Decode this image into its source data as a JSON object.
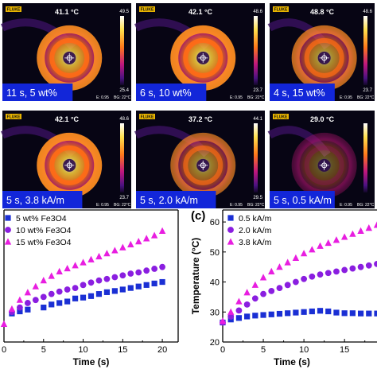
{
  "thermal_images": [
    {
      "temp": "41.1 °C",
      "scale_max": "49.5",
      "scale_min": "25.4",
      "caption": "11 s, 5 wt%",
      "brand": "FLUKE",
      "emissivity": "E: 0.95",
      "background": "BG: 22°C",
      "intensity": 0.85
    },
    {
      "temp": "42.1 °C",
      "scale_max": "48.6",
      "scale_min": "23.7",
      "caption": "6 s, 10 wt%",
      "brand": "FLUKE",
      "emissivity": "E: 0.95",
      "background": "BG: 22°C",
      "intensity": 0.9
    },
    {
      "temp": "48.8 °C",
      "scale_max": "48.6",
      "scale_min": "23.7",
      "caption": "4 s, 15 wt%",
      "brand": "FLUKE",
      "emissivity": "E: 0.95",
      "background": "BG: 22°C",
      "intensity": 0.6
    },
    {
      "temp": "42.1 °C",
      "scale_max": "48.6",
      "scale_min": "23.7",
      "caption": "5 s, 3.8 kA/m",
      "brand": "FLUKE",
      "emissivity": "E: 0.95",
      "background": "BG: 22°C",
      "intensity": 0.9
    },
    {
      "temp": "37.2 °C",
      "scale_max": "44.1",
      "scale_min": "29.5",
      "caption": "5 s, 2.0 kA/m",
      "brand": "FLUKE",
      "emissivity": "E: 0.95",
      "background": "BG: 22°C",
      "intensity": 0.5
    },
    {
      "temp": "29.0 °C",
      "scale_max": "",
      "scale_min": "",
      "caption": "5 s, 0.5 kA/m",
      "brand": "FLUKE",
      "emissivity": "E: 0.95",
      "background": "BG: 22°C",
      "intensity": 0.15
    }
  ],
  "chart_data": [
    {
      "type": "scatter",
      "panel_label": "",
      "xlabel": "Time (s)",
      "ylabel": "",
      "xlim": [
        0,
        22
      ],
      "ylim": [
        20,
        64
      ],
      "xticks": [
        0,
        5,
        10,
        15,
        20
      ],
      "legend_position": "top-left",
      "series": [
        {
          "name": "5 wt% Fe3O4",
          "marker": "square",
          "color": "#1a2fd4",
          "x": [
            1,
            2,
            3,
            5,
            6,
            7,
            8,
            9,
            10,
            11,
            12,
            13,
            14,
            15,
            16,
            17,
            18,
            19,
            20
          ],
          "y": [
            29.5,
            30.2,
            30.8,
            31.5,
            32.5,
            33,
            33.5,
            34.5,
            34.8,
            35.3,
            36,
            36.6,
            37,
            37.5,
            38,
            38.5,
            39,
            39.5,
            40
          ]
        },
        {
          "name": "10 wt% Fe3O4",
          "marker": "circle",
          "color": "#8a1ee0",
          "x": [
            1,
            2,
            3,
            4,
            5,
            6,
            7,
            8,
            9,
            10,
            11,
            12,
            13,
            14,
            15,
            16,
            17,
            18,
            19,
            20
          ],
          "y": [
            30,
            31.5,
            33,
            34,
            35,
            36,
            36.8,
            37.5,
            38,
            39,
            39.8,
            40.5,
            41,
            41.6,
            42.2,
            42.8,
            43.2,
            43.8,
            44.4,
            45
          ]
        },
        {
          "name": "15 wt% Fe3O4",
          "marker": "triangle",
          "color": "#e81ee0",
          "x": [
            0,
            1,
            2,
            3,
            4,
            5,
            6,
            7,
            8,
            9,
            10,
            11,
            12,
            13,
            14,
            15,
            16,
            17,
            18,
            19,
            20
          ],
          "y": [
            26,
            31,
            34,
            36.5,
            38.5,
            40.5,
            42,
            43.5,
            44.5,
            45.5,
            46.5,
            47.5,
            48.5,
            49.5,
            50.5,
            51.5,
            52.5,
            53.5,
            54.5,
            55.5,
            57
          ]
        }
      ]
    },
    {
      "type": "scatter",
      "panel_label": "(c)",
      "xlabel": "Time (s)",
      "ylabel": "Temperature (°C)",
      "xlim": [
        0,
        19
      ],
      "ylim": [
        20,
        64
      ],
      "xticks": [
        0,
        5,
        10,
        15
      ],
      "yticks": [
        20,
        30,
        40,
        50,
        60
      ],
      "legend_position": "top-left",
      "series": [
        {
          "name": "0.5 kA/m",
          "marker": "square",
          "color": "#1a2fd4",
          "x": [
            0,
            1,
            2,
            3,
            4,
            5,
            6,
            7,
            8,
            9,
            10,
            11,
            12,
            13,
            14,
            15,
            16,
            17,
            18,
            19
          ],
          "y": [
            26.5,
            27.5,
            28,
            28.5,
            28.8,
            29,
            29.2,
            29.4,
            29.6,
            29.8,
            30,
            30.2,
            30.4,
            30.2,
            29.8,
            29.6,
            29.6,
            29.5,
            29.5,
            29.5
          ]
        },
        {
          "name": "2.0 kA/m",
          "marker": "circle",
          "color": "#8a1ee0",
          "x": [
            0,
            1,
            2,
            3,
            4,
            5,
            6,
            7,
            8,
            9,
            10,
            11,
            12,
            13,
            14,
            15,
            16,
            17,
            18,
            19
          ],
          "y": [
            26.5,
            28.5,
            30.5,
            32.5,
            34.5,
            36,
            37,
            38,
            39,
            40,
            41,
            41.8,
            42.5,
            43,
            43.5,
            44,
            44.5,
            45,
            45.5,
            46
          ]
        },
        {
          "name": "3.8 kA/m",
          "marker": "triangle",
          "color": "#e81ee0",
          "x": [
            0,
            1,
            2,
            3,
            4,
            5,
            6,
            7,
            8,
            9,
            10,
            11,
            12,
            13,
            14,
            15,
            16,
            17,
            18,
            19
          ],
          "y": [
            27,
            30,
            33.5,
            36.5,
            39,
            41.5,
            43.5,
            45,
            46.5,
            48,
            49.5,
            50.8,
            52,
            53,
            54,
            55,
            56,
            57,
            58,
            59
          ]
        }
      ]
    }
  ]
}
